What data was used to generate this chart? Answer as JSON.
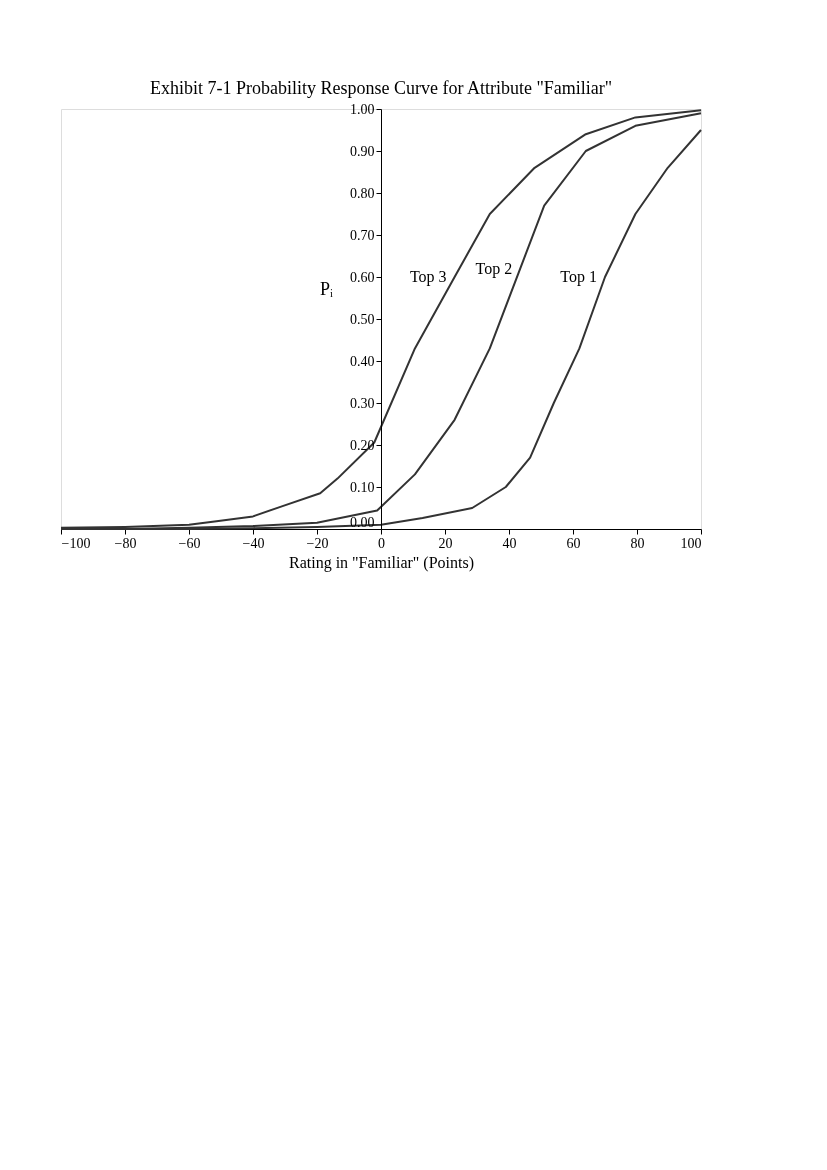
{
  "chart_data": {
    "type": "line",
    "title": "Exhibit 7-1  Probability Response Curve for Attribute \"Familiar\"",
    "xlabel": "Rating in \"Familiar\" (Points)",
    "ylabel": "Pᵢ",
    "series": [
      {
        "name": "Top 1",
        "color": "#333333",
        "x": [
          -100,
          -80,
          -60,
          -40,
          -20,
          0,
          13,
          28.5,
          39,
          46.6,
          54,
          62,
          70,
          79.5,
          89.6,
          100
        ],
        "values": [
          0,
          0,
          0,
          0.002,
          0.005,
          0.01,
          0.026,
          0.05,
          0.1,
          0.17,
          0.3,
          0.43,
          0.6,
          0.75,
          0.86,
          0.95
        ]
      },
      {
        "name": "Top 2",
        "color": "#333333",
        "x": [
          -100,
          -80,
          -60,
          -40,
          -20,
          -1.2,
          10.6,
          23,
          34,
          43.5,
          51,
          64,
          79.5,
          100
        ],
        "values": [
          0,
          0,
          0.003,
          0.007,
          0.015,
          0.044,
          0.13,
          0.26,
          0.43,
          0.62,
          0.77,
          0.9,
          0.96,
          0.99
        ]
      },
      {
        "name": "Top 3",
        "color": "#333333",
        "x": [
          -100,
          -80,
          -60,
          -52,
          -40,
          -31,
          -19,
          -13.6,
          -2.1,
          10.6,
          23,
          34,
          48,
          64,
          79.5,
          100
        ],
        "values": [
          0.003,
          0.005,
          0.01,
          0.018,
          0.03,
          0.054,
          0.085,
          0.12,
          0.206,
          0.43,
          0.6,
          0.75,
          0.86,
          0.94,
          0.98,
          0.997
        ]
      }
    ],
    "xlim": [
      -100,
      100
    ],
    "xticks": [
      -100,
      -80,
      -60,
      -40,
      -20,
      0,
      20,
      40,
      60,
      80,
      100
    ],
    "ylim": [
      0,
      1
    ],
    "yticks": [
      {
        "value": 0,
        "label": "0.00"
      },
      {
        "value": 0.1,
        "label": "0.10"
      },
      {
        "value": 0.2,
        "label": "0.20"
      },
      {
        "value": 0.3,
        "label": "0.30"
      },
      {
        "value": 0.4,
        "label": "0.40"
      },
      {
        "value": 0.5,
        "label": "0.50"
      },
      {
        "value": 0.6,
        "label": "0.60"
      },
      {
        "value": 0.7,
        "label": "0.70"
      },
      {
        "value": 0.8,
        "label": "0.80"
      },
      {
        "value": 0.9,
        "label": "0.90"
      },
      {
        "value": 1,
        "label": "1.00"
      }
    ],
    "grid": false,
    "legend": false,
    "marker": "none",
    "line_style": "solid"
  }
}
